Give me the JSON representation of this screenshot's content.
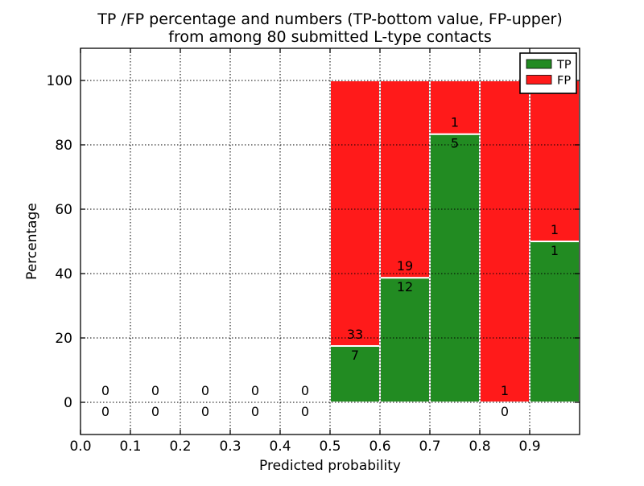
{
  "chart_data": {
    "type": "bar",
    "stacked": true,
    "title_lines": [
      "TP /FP percentage and numbers (TP-bottom value, FP-upper)",
      "from among 80 submitted L-type contacts"
    ],
    "xlabel": "Predicted probability",
    "ylabel": "Percentage",
    "xlim": [
      0.0,
      1.0
    ],
    "ylim": [
      -10,
      110
    ],
    "xticks": {
      "values": [
        0.0,
        0.1,
        0.2,
        0.3,
        0.4,
        0.5,
        0.6,
        0.7,
        0.8,
        0.9
      ],
      "labels": [
        "0.0",
        "0.1",
        "0.2",
        "0.3",
        "0.4",
        "0.5",
        "0.6",
        "0.7",
        "0.8",
        "0.9"
      ]
    },
    "yticks": {
      "values": [
        0,
        20,
        40,
        60,
        80,
        100
      ],
      "labels": [
        "0",
        "20",
        "40",
        "60",
        "80",
        "100"
      ]
    },
    "grid": {
      "style": "dotted",
      "color": "#000000",
      "drawn_above_bars": true
    },
    "colors": {
      "tp": "#228B22",
      "fp": "#FF1A1A",
      "bar_edge": "#FFFFFF",
      "frame": "#000000",
      "background": "#FFFFFF"
    },
    "legend": {
      "position": "upper right",
      "entries": [
        {
          "label": "TP",
          "color": "#228B22"
        },
        {
          "label": "FP",
          "color": "#FF1A1A"
        }
      ]
    },
    "total_submitted": 80,
    "categories": [
      "0.0-0.1",
      "0.1-0.2",
      "0.2-0.3",
      "0.3-0.4",
      "0.4-0.5",
      "0.5-0.6",
      "0.6-0.7",
      "0.7-0.8",
      "0.8-0.9",
      "0.9-1.0"
    ],
    "bins": [
      {
        "x_range": [
          0.0,
          0.1
        ],
        "tp_count": 0,
        "fp_count": 0,
        "tp_pct": 0,
        "fp_pct": 0
      },
      {
        "x_range": [
          0.1,
          0.2
        ],
        "tp_count": 0,
        "fp_count": 0,
        "tp_pct": 0,
        "fp_pct": 0
      },
      {
        "x_range": [
          0.2,
          0.3
        ],
        "tp_count": 0,
        "fp_count": 0,
        "tp_pct": 0,
        "fp_pct": 0
      },
      {
        "x_range": [
          0.3,
          0.4
        ],
        "tp_count": 0,
        "fp_count": 0,
        "tp_pct": 0,
        "fp_pct": 0
      },
      {
        "x_range": [
          0.4,
          0.5
        ],
        "tp_count": 0,
        "fp_count": 0,
        "tp_pct": 0,
        "fp_pct": 0
      },
      {
        "x_range": [
          0.5,
          0.6
        ],
        "tp_count": 7,
        "fp_count": 33,
        "tp_pct": 17.5,
        "fp_pct": 82.5
      },
      {
        "x_range": [
          0.6,
          0.7
        ],
        "tp_count": 12,
        "fp_count": 19,
        "tp_pct": 38.71,
        "fp_pct": 61.29
      },
      {
        "x_range": [
          0.7,
          0.8
        ],
        "tp_count": 5,
        "fp_count": 1,
        "tp_pct": 83.33,
        "fp_pct": 16.67
      },
      {
        "x_range": [
          0.8,
          0.9
        ],
        "tp_count": 0,
        "fp_count": 1,
        "tp_pct": 0,
        "fp_pct": 100
      },
      {
        "x_range": [
          0.9,
          1.0
        ],
        "tp_count": 1,
        "fp_count": 1,
        "tp_pct": 50,
        "fp_pct": 50
      }
    ]
  }
}
